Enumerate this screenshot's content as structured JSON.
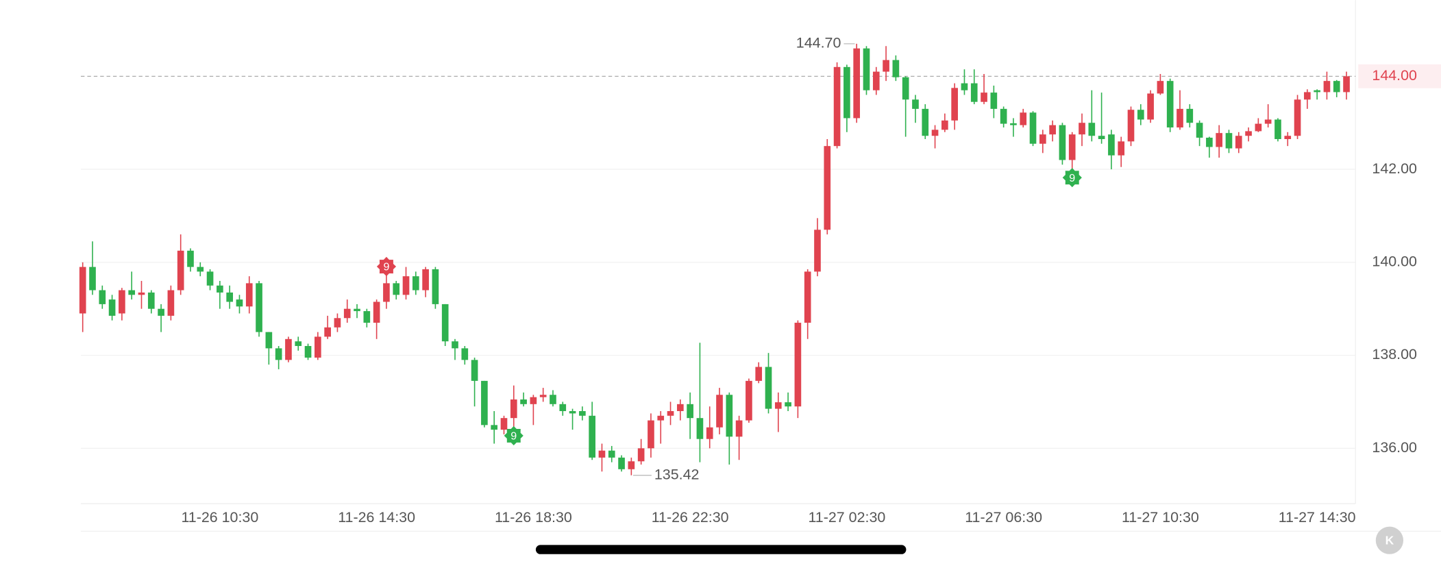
{
  "chart_data": {
    "type": "candlestick",
    "up_color": "#e0434f",
    "down_color": "#2fb14f",
    "categories": [
      null,
      null,
      null,
      null,
      null,
      null,
      null,
      null,
      null,
      null,
      null,
      null,
      null,
      null,
      "11-26 10:30",
      null,
      null,
      null,
      null,
      null,
      null,
      null,
      null,
      null,
      null,
      null,
      null,
      null,
      null,
      null,
      "11-26 14:30",
      null,
      null,
      null,
      null,
      null,
      null,
      null,
      null,
      null,
      null,
      null,
      null,
      null,
      null,
      null,
      "11-26 18:30",
      null,
      null,
      null,
      null,
      null,
      null,
      null,
      null,
      null,
      null,
      null,
      null,
      null,
      null,
      null,
      "11-26 22:30",
      null,
      null,
      null,
      null,
      null,
      null,
      null,
      null,
      null,
      null,
      null,
      null,
      null,
      null,
      null,
      "11-27 02:30",
      null,
      null,
      null,
      null,
      null,
      null,
      null,
      null,
      null,
      null,
      null,
      null,
      null,
      null,
      null,
      "11-27 06:30",
      null,
      null,
      null,
      null,
      null,
      null,
      null,
      null,
      null,
      null,
      null,
      null,
      null,
      null,
      null,
      "11-27 10:30",
      null,
      null,
      null,
      null,
      null,
      null,
      null,
      null,
      null,
      null,
      null,
      null,
      null,
      null,
      null,
      "11-27 14:30",
      null,
      null,
      null
    ],
    "open": [
      138.9,
      139.9,
      139.4,
      139.2,
      138.9,
      139.4,
      139.3,
      139.35,
      139.0,
      138.85,
      139.4,
      140.25,
      139.9,
      139.8,
      139.5,
      139.35,
      139.2,
      139.05,
      139.55,
      138.5,
      138.15,
      137.9,
      138.3,
      138.2,
      137.95,
      138.4,
      138.6,
      138.8,
      139.0,
      138.95,
      138.7,
      139.15,
      139.55,
      139.3,
      139.7,
      139.4,
      139.85,
      139.1,
      138.3,
      138.15,
      137.9,
      137.45,
      136.5,
      136.4,
      136.65,
      137.05,
      136.95,
      137.1,
      137.15,
      136.95,
      136.8,
      136.8,
      136.7,
      135.8,
      135.95,
      135.8,
      135.55,
      135.72,
      136.0,
      136.6,
      136.7,
      136.8,
      136.95,
      136.65,
      136.2,
      136.45,
      137.15,
      136.25,
      136.6,
      137.45,
      137.75,
      136.85,
      136.99,
      136.9,
      138.7,
      139.8,
      140.7,
      142.5,
      144.2,
      143.1,
      144.6,
      143.7,
      144.1,
      144.35,
      143.98,
      143.5,
      143.3,
      142.72,
      142.85,
      143.05,
      143.85,
      143.85,
      143.45,
      143.65,
      143.3,
      142.99,
      142.95,
      143.22,
      142.55,
      142.75,
      142.95,
      142.2,
      142.75,
      143.0,
      142.72,
      142.75,
      142.3,
      142.6,
      143.28,
      143.07,
      143.63,
      143.9,
      142.9,
      143.3,
      143.0,
      142.68,
      142.48,
      142.78,
      142.45,
      142.72,
      142.82,
      142.98,
      143.07,
      142.65,
      142.72,
      143.5,
      143.7,
      143.66,
      143.9,
      143.66
    ],
    "high": [
      140.0,
      140.45,
      139.5,
      139.3,
      139.45,
      139.8,
      139.6,
      139.4,
      139.1,
      139.5,
      140.6,
      140.3,
      140.0,
      139.85,
      139.6,
      139.5,
      139.3,
      139.7,
      139.6,
      138.5,
      138.2,
      138.4,
      138.4,
      138.25,
      138.5,
      138.85,
      138.9,
      139.2,
      139.1,
      139.0,
      139.2,
      139.75,
      139.6,
      139.9,
      139.8,
      139.9,
      139.9,
      139.1,
      138.35,
      138.2,
      137.95,
      137.45,
      136.8,
      136.7,
      137.35,
      137.2,
      137.15,
      137.3,
      137.25,
      137.0,
      136.85,
      136.9,
      137.0,
      136.1,
      136.05,
      135.85,
      135.8,
      136.2,
      136.75,
      136.8,
      137.0,
      137.05,
      137.2,
      138.27,
      136.9,
      137.3,
      137.2,
      136.7,
      137.5,
      137.85,
      138.05,
      137.2,
      137.2,
      138.75,
      139.85,
      140.95,
      142.65,
      144.3,
      144.25,
      144.7,
      144.65,
      144.2,
      144.65,
      144.45,
      144.0,
      143.6,
      143.4,
      142.95,
      143.2,
      143.85,
      144.15,
      144.15,
      144.05,
      143.8,
      143.35,
      143.1,
      143.3,
      143.25,
      142.85,
      143.05,
      143.0,
      142.8,
      143.2,
      143.7,
      143.65,
      142.85,
      142.7,
      143.35,
      143.4,
      143.7,
      144.05,
      143.95,
      143.7,
      143.4,
      143.05,
      142.7,
      142.95,
      142.85,
      142.8,
      142.9,
      143.1,
      143.4,
      143.1,
      142.8,
      143.6,
      143.72,
      143.72,
      144.1,
      143.92,
      144.1
    ],
    "low": [
      138.5,
      139.3,
      139.0,
      138.75,
      138.75,
      139.2,
      139.0,
      138.9,
      138.5,
      138.75,
      139.3,
      139.8,
      139.7,
      139.4,
      139.0,
      139.0,
      138.9,
      138.9,
      138.4,
      137.8,
      137.7,
      137.85,
      138.1,
      137.9,
      137.9,
      138.35,
      138.5,
      138.7,
      138.8,
      138.6,
      138.35,
      139.0,
      139.2,
      139.2,
      139.3,
      139.25,
      139.0,
      138.2,
      137.9,
      137.8,
      136.9,
      136.45,
      136.1,
      136.3,
      136.35,
      136.9,
      136.5,
      137.0,
      136.9,
      136.7,
      136.4,
      136.6,
      135.75,
      135.5,
      135.7,
      135.5,
      135.42,
      135.65,
      135.8,
      136.1,
      136.5,
      136.6,
      136.2,
      135.7,
      136.0,
      136.3,
      135.65,
      135.75,
      136.55,
      137.4,
      136.75,
      136.35,
      136.8,
      136.65,
      138.35,
      139.7,
      140.6,
      142.45,
      142.8,
      143.0,
      143.6,
      143.6,
      143.9,
      143.9,
      142.7,
      143.0,
      142.65,
      142.45,
      142.8,
      142.85,
      143.6,
      143.4,
      143.4,
      143.1,
      142.9,
      142.7,
      142.9,
      142.5,
      142.35,
      142.6,
      142.1,
      141.9,
      142.5,
      142.6,
      142.55,
      142.0,
      142.05,
      142.5,
      142.95,
      143.0,
      143.6,
      142.8,
      142.85,
      142.9,
      142.5,
      142.25,
      142.25,
      142.35,
      142.35,
      142.6,
      142.8,
      142.9,
      142.6,
      142.5,
      142.65,
      143.3,
      143.5,
      143.5,
      143.55,
      143.5
    ],
    "close": [
      139.9,
      139.4,
      139.1,
      138.85,
      139.4,
      139.3,
      139.35,
      139.0,
      138.85,
      139.4,
      140.25,
      139.9,
      139.8,
      139.5,
      139.35,
      139.15,
      139.05,
      139.55,
      138.5,
      138.15,
      137.9,
      138.35,
      138.2,
      137.95,
      138.4,
      138.6,
      138.8,
      139.0,
      138.95,
      138.7,
      139.15,
      139.55,
      139.3,
      139.7,
      139.4,
      139.85,
      139.1,
      138.3,
      138.15,
      137.9,
      137.45,
      136.5,
      136.4,
      136.65,
      137.05,
      136.95,
      137.1,
      137.15,
      136.95,
      136.8,
      136.75,
      136.7,
      135.8,
      135.95,
      135.8,
      135.55,
      135.72,
      136.0,
      136.6,
      136.7,
      136.8,
      136.95,
      136.65,
      136.2,
      136.45,
      137.15,
      136.25,
      136.6,
      137.45,
      137.75,
      136.85,
      136.99,
      136.9,
      138.7,
      139.8,
      140.7,
      142.5,
      144.2,
      143.1,
      144.6,
      143.7,
      144.1,
      144.35,
      143.98,
      143.5,
      143.3,
      142.72,
      142.85,
      143.05,
      143.75,
      143.7,
      143.45,
      143.65,
      143.3,
      142.98,
      142.95,
      143.22,
      142.55,
      142.75,
      142.95,
      142.2,
      142.75,
      143.0,
      142.72,
      142.65,
      142.3,
      142.6,
      143.28,
      143.07,
      143.63,
      143.9,
      142.9,
      143.3,
      143.0,
      142.68,
      142.48,
      142.78,
      142.45,
      142.72,
      142.82,
      142.98,
      143.07,
      142.65,
      142.72,
      143.5,
      143.66,
      143.66,
      143.9,
      143.66,
      144.0
    ],
    "ylim": [
      134.81,
      145.64
    ],
    "yticks": [
      {
        "value": 136,
        "label": "136.00"
      },
      {
        "value": 138,
        "label": "138.00"
      },
      {
        "value": 140,
        "label": "140.00"
      },
      {
        "value": 142,
        "label": "142.00"
      }
    ],
    "last_price": {
      "value": 144,
      "label": "144.00"
    },
    "grid": true,
    "annotations": [
      {
        "value": 144.7,
        "label": "144.70",
        "side": "left"
      },
      {
        "value": 135.42,
        "label": "135.42",
        "side": "right"
      }
    ],
    "signals": [
      {
        "index": 31,
        "label": "9",
        "position": "above",
        "color": "#e0434f"
      },
      {
        "index": 44,
        "label": "9",
        "position": "below",
        "color": "#2fb14f"
      },
      {
        "index": 101,
        "label": "9",
        "position": "below",
        "color": "#2fb14f"
      }
    ]
  }
}
